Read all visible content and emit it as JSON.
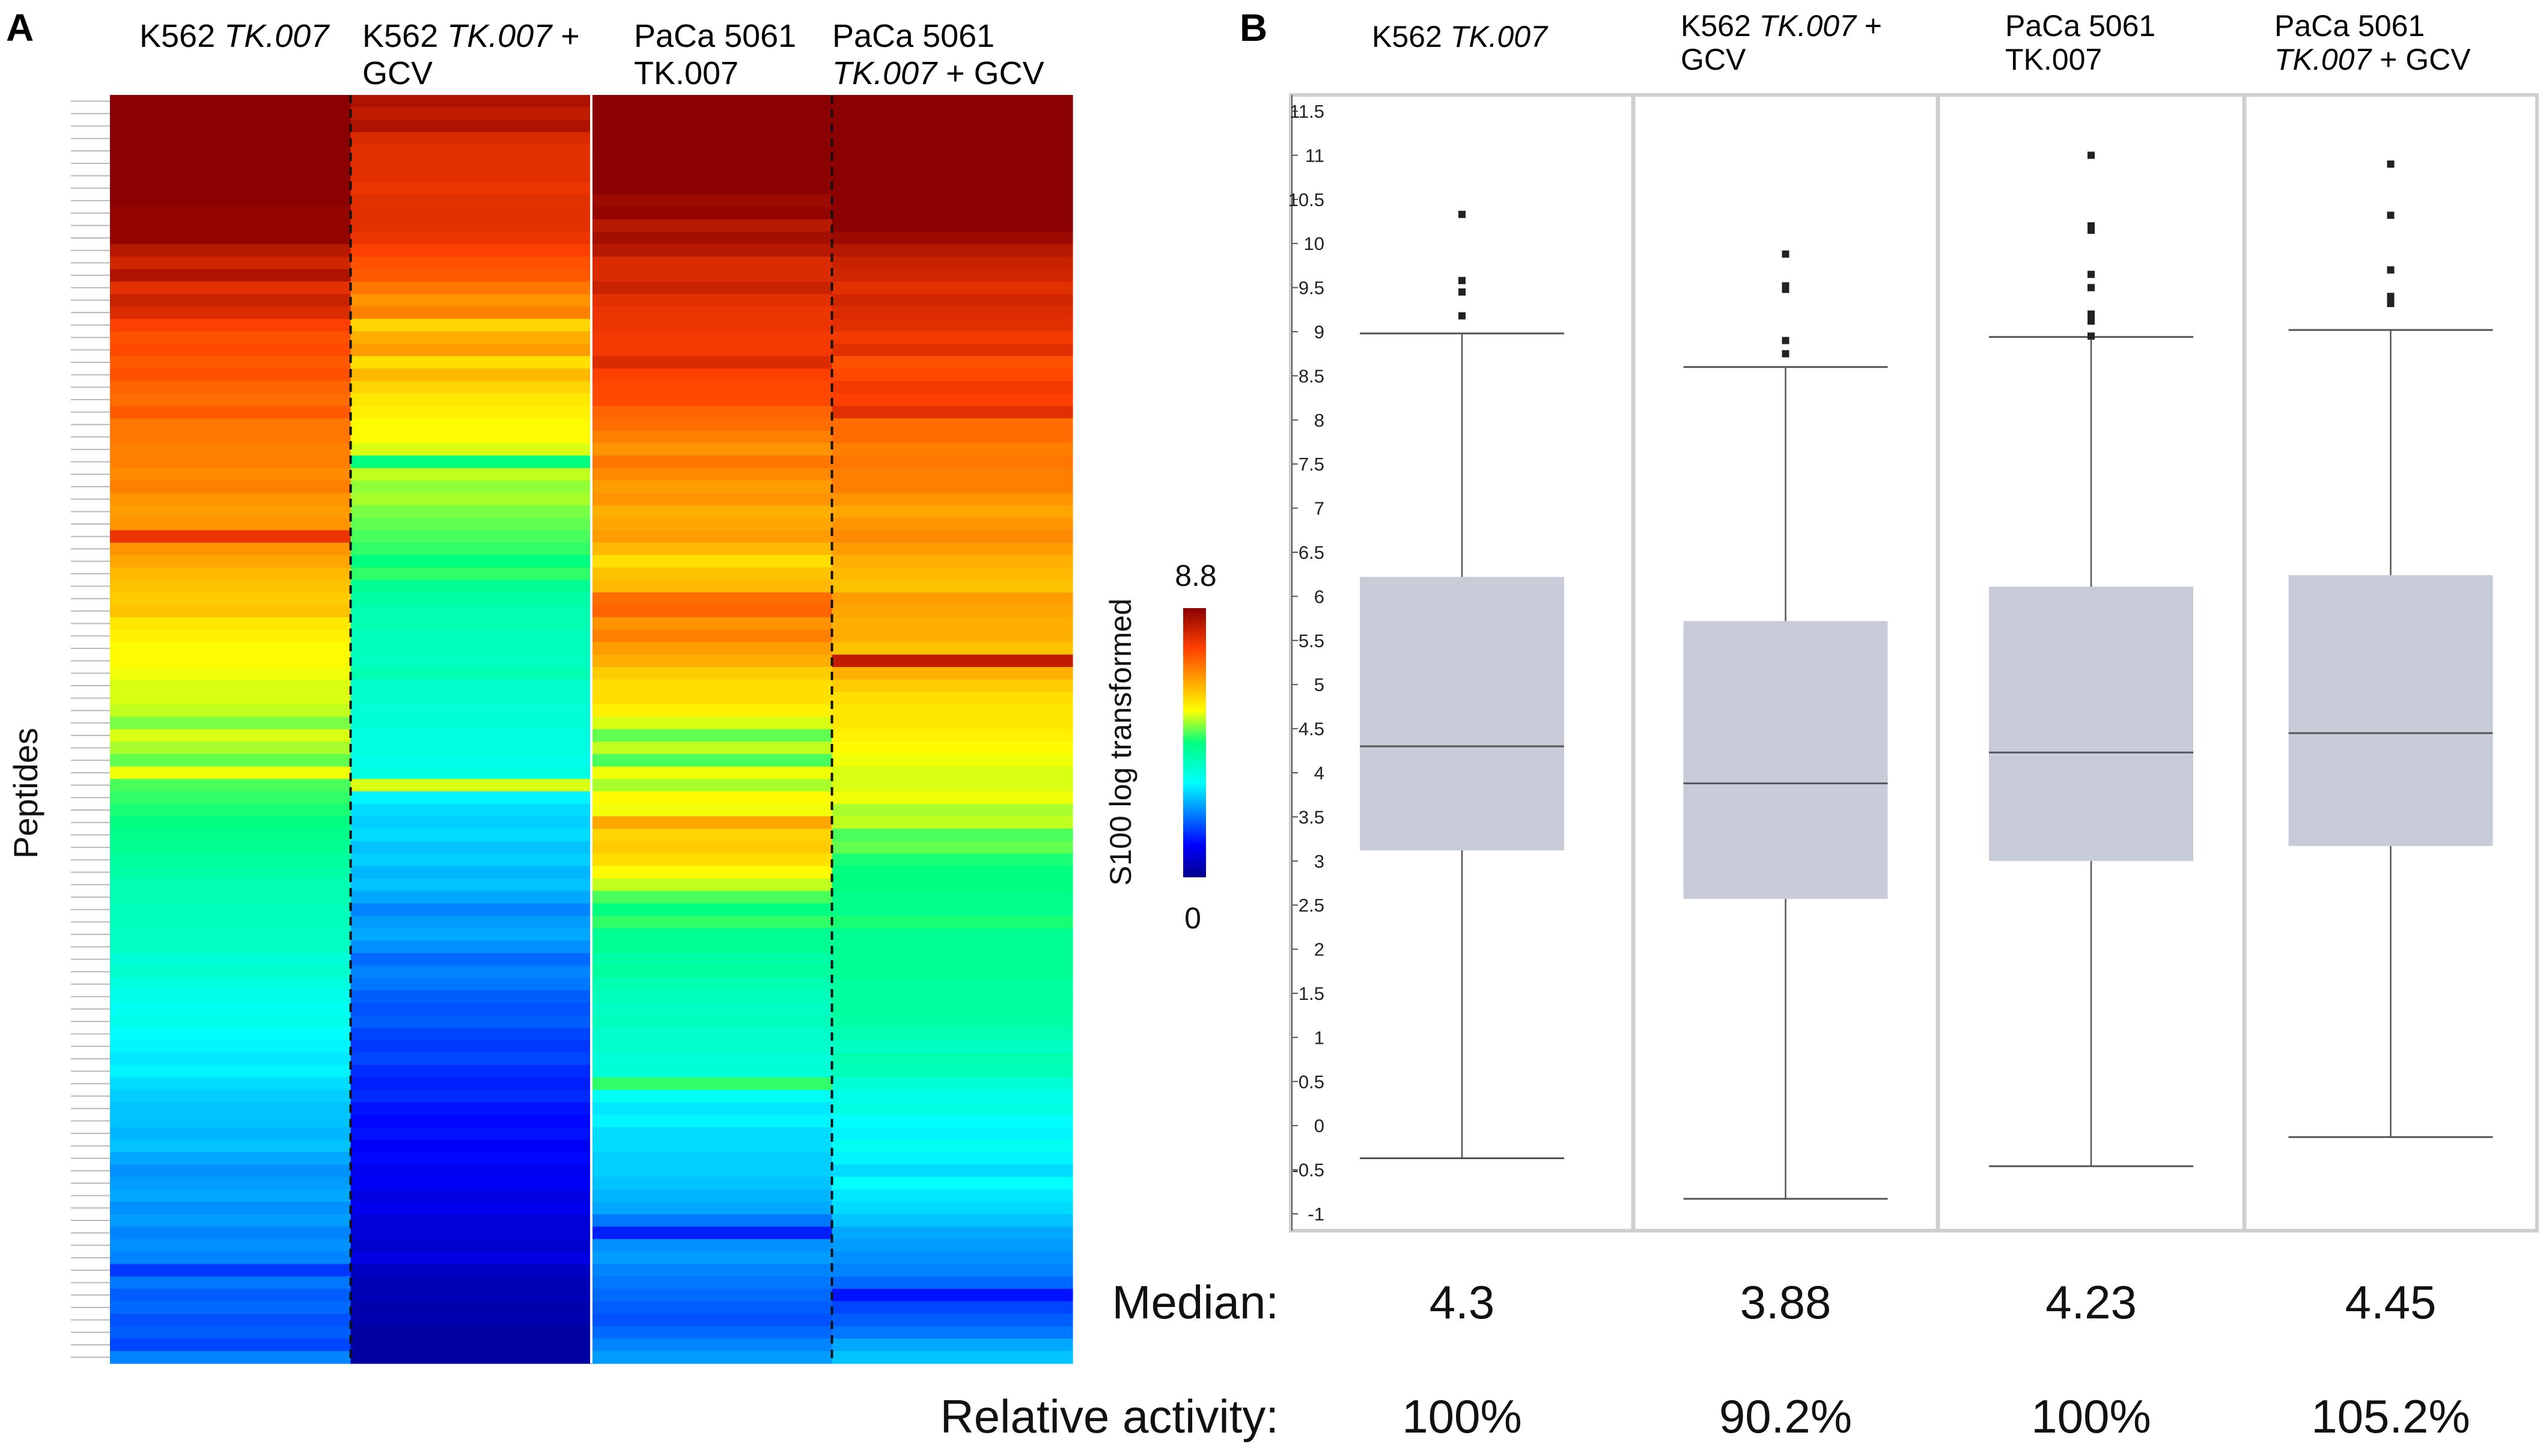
{
  "panel_a_letter": "A",
  "panel_b_letter": "B",
  "chart_data": [
    {
      "type": "heatmap",
      "ylabel": "Peptides",
      "columns": [
        {
          "title_plain": "K562 ",
          "title_italic": "TK.007",
          "title_line2_plain": "",
          "title_line2_italic": "",
          "title_line2_suffix": ""
        },
        {
          "title_plain": "K562 ",
          "title_italic": "TK.007",
          "title_suffix": " +",
          "title_line2_plain": "GCV"
        },
        {
          "title_plain": "PaCa 5061",
          "title_line2_italic": "TK.007"
        },
        {
          "title_plain": "PaCa 5061",
          "title_line2_italic": "TK.007",
          "title_line2_suffix": " + GCV"
        }
      ],
      "colorbar": {
        "label": "S100 log transformed",
        "min": 0,
        "max": 8.8,
        "min_label": "0",
        "max_label": "8.8"
      },
      "values": [
        [
          8.8,
          8.8,
          8.8,
          8.8,
          8.8,
          8.8,
          8.8,
          8.8,
          8.8,
          8.7,
          8.7,
          8.7,
          8.3,
          8.0,
          8.4,
          7.8,
          8.1,
          7.9,
          7.5,
          7.3,
          7.4,
          7.2,
          7.3,
          7.1,
          7.0,
          7.2,
          6.9,
          6.9,
          6.8,
          6.8,
          6.7,
          6.8,
          6.6,
          6.5,
          6.6,
          7.7,
          6.6,
          6.4,
          6.2,
          6.1,
          6.0,
          6.1,
          5.7,
          5.6,
          5.5,
          5.5,
          5.4,
          5.3,
          5.3,
          5.2,
          4.9,
          5.3,
          5.1,
          4.8,
          5.4,
          4.7,
          4.6,
          4.5,
          4.4,
          4.3,
          4.2,
          4.1,
          4.0,
          3.9,
          3.9,
          3.8,
          3.8,
          3.7,
          3.7,
          3.5,
          3.6,
          3.4,
          3.3,
          3.2,
          3.3,
          3.1,
          3.0,
          2.9,
          3.0,
          2.8,
          2.7,
          2.6,
          2.6,
          2.5,
          2.6,
          2.4,
          2.2,
          2.3,
          2.4,
          2.2,
          2.3,
          2.1,
          2.2,
          2.1,
          1.5,
          2.0,
          1.8,
          1.9,
          1.7,
          1.8,
          1.6,
          2.1
        ],
        [
          8.4,
          8.2,
          8.4,
          7.9,
          7.8,
          7.8,
          7.8,
          7.7,
          7.8,
          7.8,
          7.8,
          7.7,
          7.5,
          7.3,
          7.2,
          6.9,
          6.6,
          6.8,
          5.9,
          6.3,
          6.5,
          5.8,
          6.2,
          5.9,
          5.7,
          5.6,
          5.5,
          5.5,
          5.3,
          4.4,
          5.2,
          5.0,
          5.1,
          4.9,
          4.8,
          4.7,
          4.6,
          4.4,
          4.6,
          4.2,
          4.0,
          3.9,
          3.9,
          3.8,
          3.8,
          3.7,
          3.9,
          3.6,
          3.6,
          3.5,
          3.5,
          3.4,
          3.4,
          3.3,
          3.4,
          5.3,
          3.0,
          2.8,
          2.7,
          2.8,
          2.6,
          2.7,
          2.5,
          2.6,
          2.4,
          2.1,
          2.3,
          2.4,
          2.2,
          1.9,
          2.1,
          2.0,
          1.8,
          1.7,
          1.8,
          1.6,
          1.5,
          1.6,
          1.4,
          1.3,
          1.4,
          1.2,
          1.1,
          1.2,
          1.0,
          1.1,
          0.9,
          1.0,
          0.8,
          0.9,
          0.7,
          0.7,
          0.6,
          0.8,
          0.5,
          0.4,
          0.4,
          0.3,
          0.3,
          0.2,
          0.2,
          0.2
        ],
        [
          8.8,
          8.8,
          8.8,
          8.8,
          8.8,
          8.8,
          8.8,
          8.8,
          8.6,
          8.7,
          8.3,
          8.5,
          8.3,
          7.9,
          7.9,
          8.1,
          7.8,
          7.7,
          7.7,
          7.6,
          7.6,
          7.9,
          7.5,
          7.4,
          7.4,
          7.1,
          7.0,
          6.8,
          6.6,
          6.9,
          6.7,
          6.5,
          6.6,
          6.3,
          6.4,
          6.5,
          6.2,
          5.8,
          6.1,
          6.2,
          7.0,
          7.1,
          6.6,
          6.8,
          6.5,
          6.3,
          6.0,
          5.8,
          5.8,
          5.6,
          5.3,
          4.8,
          5.2,
          4.7,
          5.4,
          5.1,
          5.5,
          5.4,
          6.4,
          5.9,
          6.0,
          5.8,
          5.5,
          5.2,
          4.7,
          4.4,
          4.6,
          4.2,
          4.2,
          4.0,
          4.1,
          3.9,
          3.8,
          3.7,
          3.8,
          3.6,
          3.6,
          3.5,
          3.5,
          4.6,
          3.2,
          2.9,
          3.0,
          2.8,
          2.8,
          2.7,
          2.7,
          2.6,
          2.5,
          2.4,
          2.0,
          1.3,
          2.2,
          2.3,
          2.1,
          2.0,
          1.9,
          1.8,
          1.7,
          1.9,
          2.1,
          2.3
        ],
        [
          8.8,
          8.8,
          8.8,
          8.8,
          8.8,
          8.8,
          8.8,
          8.8,
          8.8,
          8.8,
          8.8,
          8.6,
          8.3,
          8.1,
          8.0,
          7.8,
          8.0,
          7.9,
          7.8,
          7.6,
          7.8,
          7.3,
          7.4,
          7.6,
          7.5,
          7.8,
          7.0,
          7.0,
          6.8,
          6.9,
          6.8,
          6.8,
          6.6,
          6.4,
          6.6,
          6.7,
          6.5,
          6.3,
          6.2,
          6.1,
          6.5,
          6.4,
          6.3,
          6.3,
          6.1,
          8.2,
          6.3,
          6.0,
          5.8,
          5.7,
          5.7,
          5.6,
          5.5,
          5.4,
          5.3,
          5.3,
          5.4,
          5.1,
          5.2,
          4.7,
          4.8,
          4.5,
          4.4,
          4.4,
          4.3,
          4.3,
          4.5,
          4.2,
          4.2,
          4.2,
          4.2,
          4.1,
          4.1,
          4.1,
          4.0,
          3.9,
          3.7,
          3.9,
          3.8,
          3.5,
          3.3,
          3.4,
          3.1,
          3.0,
          3.2,
          3.0,
          2.8,
          3.1,
          2.9,
          2.8,
          2.6,
          2.4,
          2.3,
          2.2,
          2.1,
          1.9,
          1.2,
          1.6,
          1.8,
          2.0,
          2.4,
          2.6
        ]
      ]
    },
    {
      "type": "box",
      "ylim": [
        -1,
        11.5
      ],
      "yticks": [
        11.5,
        11,
        10.5,
        10,
        9.5,
        9,
        8.5,
        8,
        7.5,
        7,
        6.5,
        6,
        5.5,
        5,
        4.5,
        4,
        3.5,
        3,
        2.5,
        2,
        1.5,
        1,
        0.5,
        0,
        -0.5,
        -1
      ],
      "ytick_labels": [
        "11.5",
        "11",
        "10.5",
        "10",
        "9.5",
        "9",
        "8.5",
        "8",
        "7.5",
        "7",
        "6.5",
        "6",
        "5.5",
        "5",
        "4.5",
        "4",
        "3.5",
        "3",
        "2.5",
        "2",
        "1.5",
        "1",
        "0.5",
        "0",
        "-0.5",
        "-1"
      ],
      "series": [
        {
          "title_plain": "K562 ",
          "title_italic": "TK.007",
          "title_suffix": "",
          "title_line2_plain": "",
          "title_line2_italic": "",
          "title_line2_suffix": "",
          "whisker_low": -0.37,
          "q1": 3.12,
          "median": 4.3,
          "q3": 6.22,
          "whisker_high": 8.98,
          "outliers": [
            10.33,
            9.58,
            9.45,
            9.18
          ]
        },
        {
          "title_plain": "K562 ",
          "title_italic": "TK.007",
          "title_suffix": " +",
          "title_line2_plain": "GCV",
          "title_line2_italic": "",
          "title_line2_suffix": "",
          "whisker_low": -0.83,
          "q1": 2.57,
          "median": 3.88,
          "q3": 5.72,
          "whisker_high": 8.6,
          "outliers": [
            9.88,
            9.52,
            9.48,
            8.9,
            8.75
          ]
        },
        {
          "title_plain": "PaCa 5061",
          "title_italic": "",
          "title_suffix": "",
          "title_line2_plain": "",
          "title_line2_italic": "TK.007",
          "title_line2_suffix": "",
          "whisker_low": -0.46,
          "q1": 3.0,
          "median": 4.23,
          "q3": 6.11,
          "whisker_high": 8.94,
          "outliers": [
            11.0,
            10.2,
            10.15,
            9.65,
            9.5,
            9.2,
            9.12,
            8.95
          ]
        },
        {
          "title_plain": "PaCa 5061",
          "title_italic": "",
          "title_suffix": "",
          "title_line2_plain": "",
          "title_line2_italic": "TK.007",
          "title_line2_suffix": " + GCV",
          "whisker_low": -0.13,
          "q1": 3.17,
          "median": 4.45,
          "q3": 6.24,
          "whisker_high": 9.02,
          "outliers": [
            10.9,
            10.32,
            9.7,
            9.4,
            9.32
          ]
        }
      ],
      "median_label": "Median:",
      "median_values": [
        "4.3",
        "3.88",
        "4.23",
        "4.45"
      ],
      "relative_label": "Relative activity:",
      "relative_values": [
        "100%",
        "90.2%",
        "100%",
        "105.2%"
      ]
    }
  ]
}
